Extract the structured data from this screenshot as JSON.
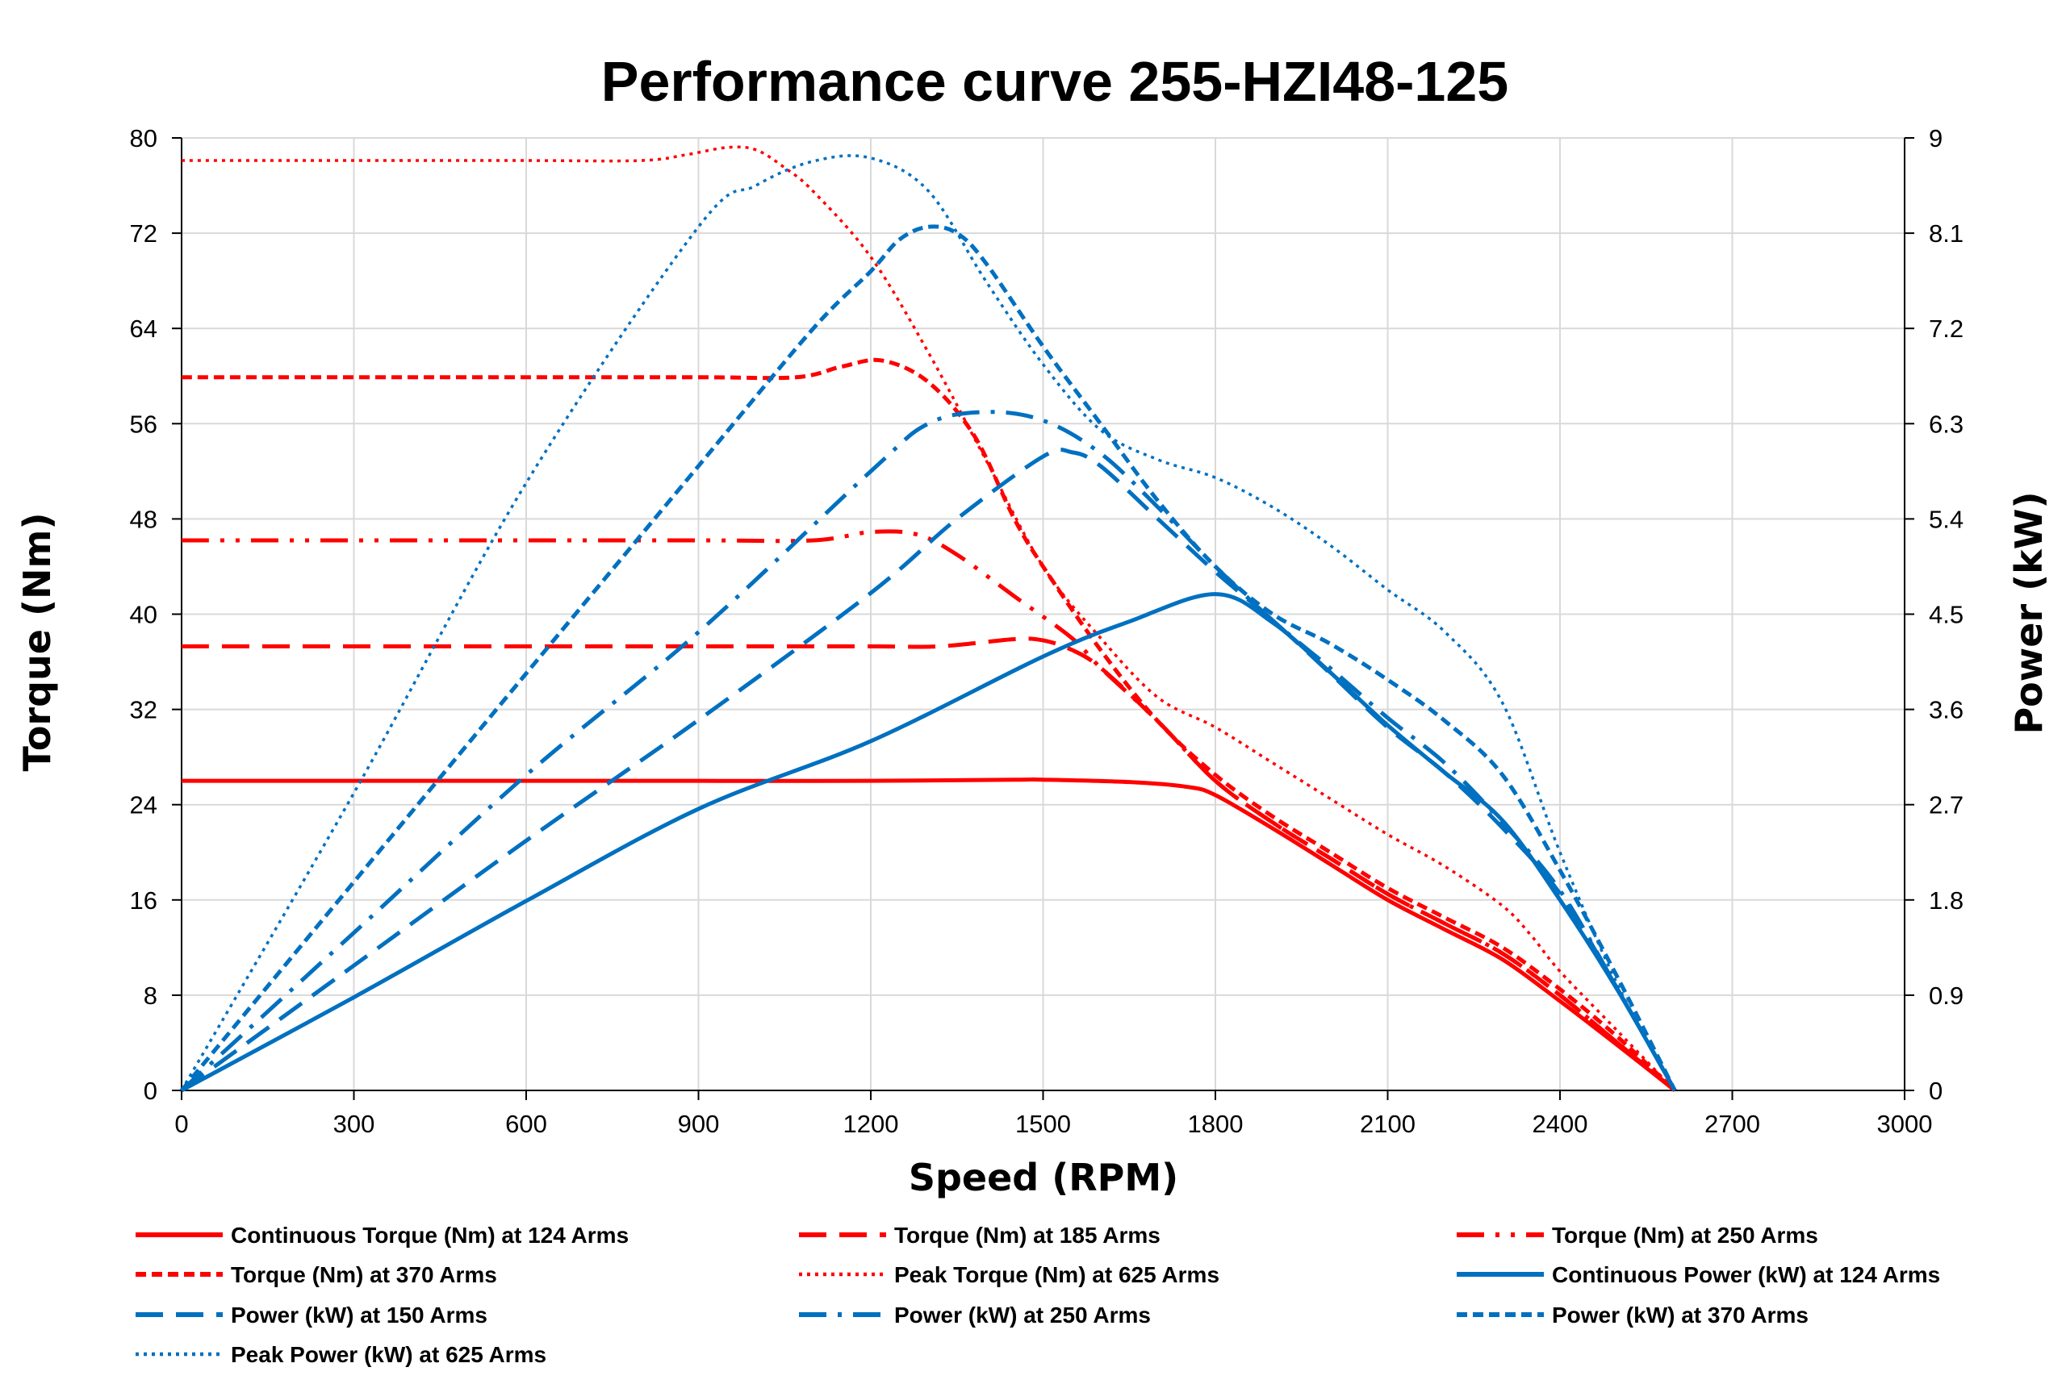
{
  "chart_data": {
    "type": "line",
    "title": "Performance curve 255-HZI48-125",
    "xlabel": "Speed (RPM)",
    "ylabel": "Torque (Nm)",
    "y2label": "Power (kW)",
    "xlim": [
      0,
      3000
    ],
    "ylim": [
      0,
      80
    ],
    "y2lim": [
      0,
      9
    ],
    "xticks": [
      0,
      300,
      600,
      900,
      1200,
      1500,
      1800,
      2100,
      2400,
      2700,
      3000
    ],
    "yticks": [
      0,
      8,
      16,
      24,
      32,
      40,
      48,
      56,
      64,
      72,
      80
    ],
    "y2ticks": [
      "0",
      "0.9",
      "1.8",
      "2.7",
      "3.6",
      "4.5",
      "5.4",
      "6.3",
      "7.2",
      "8.1",
      "9"
    ],
    "grid": true,
    "legend_position": "bottom",
    "colors": {
      "torque": "#ff0000",
      "power": "#0070c0"
    },
    "series": [
      {
        "name": "Continuous Torque (Nm) at 124 Arms",
        "axis": "left",
        "color": "#ff0000",
        "style": "solid",
        "x": [
          0,
          300,
          600,
          900,
          1200,
          1450,
          1500,
          1650,
          1750,
          1800,
          1900,
          2000,
          2100,
          2200,
          2300,
          2400,
          2500,
          2600
        ],
        "y": [
          26,
          26,
          26,
          26,
          26,
          26.1,
          26.1,
          25.9,
          25.5,
          24.8,
          22,
          19,
          16,
          13.5,
          11,
          7.5,
          3.8,
          0
        ]
      },
      {
        "name": "Torque (Nm) at 185 Arms",
        "axis": "left",
        "color": "#ff0000",
        "style": "long-dash",
        "x": [
          0,
          300,
          600,
          900,
          1200,
          1320,
          1450,
          1500,
          1550,
          1600,
          1700,
          1800,
          1900,
          2000,
          2100,
          2200,
          2300,
          2400,
          2500,
          2600
        ],
        "y": [
          37.3,
          37.3,
          37.3,
          37.3,
          37.3,
          37.3,
          37.9,
          37.8,
          37,
          35.5,
          31,
          26,
          22.5,
          19.5,
          16.5,
          14,
          11.5,
          8,
          4,
          0
        ]
      },
      {
        "name": "Torque (Nm) at 250 Arms",
        "axis": "left",
        "color": "#ff0000",
        "style": "dash-dot-dot",
        "x": [
          0,
          300,
          600,
          900,
          1100,
          1200,
          1280,
          1350,
          1450,
          1550,
          1600,
          1700,
          1800,
          1900,
          2000,
          2100,
          2200,
          2300,
          2400,
          2500,
          2600
        ],
        "y": [
          46.2,
          46.2,
          46.2,
          46.2,
          46.2,
          46.9,
          46.7,
          45,
          41.5,
          38,
          35.5,
          31,
          26,
          22.5,
          19.5,
          16.5,
          14,
          11.5,
          8,
          4,
          0
        ]
      },
      {
        "name": "Torque (Nm) at 370 Arms",
        "axis": "left",
        "color": "#ff0000",
        "style": "short-dash",
        "x": [
          0,
          300,
          600,
          900,
          1070,
          1150,
          1220,
          1300,
          1380,
          1450,
          1500,
          1600,
          1700,
          1800,
          1900,
          2000,
          2100,
          2200,
          2300,
          2400,
          2500,
          2600
        ],
        "y": [
          59.9,
          59.9,
          59.9,
          59.9,
          59.9,
          60.8,
          61.3,
          59.5,
          55,
          48,
          44,
          37,
          31,
          26.5,
          23,
          20,
          17,
          14.5,
          12,
          8.5,
          4.5,
          0
        ]
      },
      {
        "name": "Peak Torque (Nm) at 625 Arms",
        "axis": "left",
        "color": "#ff0000",
        "style": "dotted",
        "x": [
          0,
          300,
          600,
          800,
          880,
          950,
          1000,
          1050,
          1100,
          1200,
          1300,
          1400,
          1500,
          1600,
          1700,
          1800,
          1900,
          2000,
          2100,
          2200,
          2300,
          2350,
          2400,
          2500,
          2600
        ],
        "y": [
          78.1,
          78.1,
          78.1,
          78.1,
          78.6,
          79.2,
          79,
          77.5,
          75.5,
          70,
          62,
          53,
          44,
          38,
          33,
          30.5,
          27.5,
          24.5,
          21.5,
          18.8,
          15.5,
          13,
          10,
          5,
          0
        ]
      },
      {
        "name": "Continuous Power (kW) at 124 Arms",
        "axis": "right",
        "color": "#0070c0",
        "style": "solid",
        "x": [
          0,
          300,
          600,
          900,
          1200,
          1500,
          1650,
          1800,
          1900,
          2000,
          2100,
          2200,
          2300,
          2400,
          2500,
          2600
        ],
        "y": [
          0,
          0.88,
          1.79,
          2.66,
          3.3,
          4.1,
          4.43,
          4.69,
          4.42,
          3.95,
          3.45,
          3.0,
          2.55,
          1.8,
          0.95,
          0
        ]
      },
      {
        "name": "Power (kW) at 150 Arms",
        "axis": "right",
        "color": "#0070c0",
        "style": "long-dash",
        "x": [
          0,
          300,
          600,
          900,
          1200,
          1350,
          1500,
          1550,
          1600,
          1700,
          1800,
          1900,
          2000,
          2100,
          2200,
          2300,
          2400,
          2500,
          2600
        ],
        "y": [
          0,
          1.18,
          2.36,
          3.5,
          4.7,
          5.4,
          5.99,
          6.03,
          5.9,
          5.4,
          4.9,
          4.44,
          3.94,
          3.43,
          3.0,
          2.48,
          1.86,
          0.96,
          0
        ]
      },
      {
        "name": "Power (kW) at 250 Arms",
        "axis": "right",
        "color": "#0070c0",
        "style": "dash-dot",
        "x": [
          0,
          300,
          600,
          900,
          1200,
          1300,
          1400,
          1500,
          1600,
          1700,
          1800,
          1900,
          2000,
          2100,
          2200,
          2300,
          2400,
          2500,
          2600
        ],
        "y": [
          0,
          1.49,
          2.98,
          4.33,
          5.85,
          6.3,
          6.41,
          6.33,
          6.02,
          5.51,
          4.95,
          4.44,
          3.99,
          3.52,
          3.09,
          2.53,
          1.89,
          0.96,
          0
        ]
      },
      {
        "name": "Power (kW) at 370 Arms",
        "axis": "right",
        "color": "#0070c0",
        "style": "short-dash",
        "x": [
          0,
          300,
          600,
          900,
          1100,
          1200,
          1250,
          1300,
          1350,
          1400,
          1500,
          1600,
          1700,
          1800,
          1900,
          2000,
          2100,
          2200,
          2300,
          2400,
          2500,
          2600
        ],
        "y": [
          0,
          1.97,
          3.94,
          5.9,
          7.2,
          7.74,
          8.04,
          8.16,
          8.1,
          7.82,
          7.03,
          6.3,
          5.57,
          4.95,
          4.5,
          4.22,
          3.88,
          3.49,
          2.98,
          2.08,
          1.07,
          0
        ]
      },
      {
        "name": "Peak Power (kW) at 625 Arms",
        "axis": "right",
        "color": "#0070c0",
        "style": "dotted",
        "x": [
          0,
          300,
          600,
          900,
          1000,
          1100,
          1200,
          1300,
          1400,
          1500,
          1600,
          1700,
          1800,
          1900,
          2000,
          2100,
          2200,
          2300,
          2400,
          2500,
          2600
        ],
        "y": [
          0,
          2.81,
          5.74,
          8.16,
          8.55,
          8.78,
          8.81,
          8.5,
          7.65,
          6.86,
          6.24,
          5.96,
          5.79,
          5.51,
          5.15,
          4.73,
          4.33,
          3.66,
          2.25,
          1.0,
          0
        ]
      }
    ]
  }
}
